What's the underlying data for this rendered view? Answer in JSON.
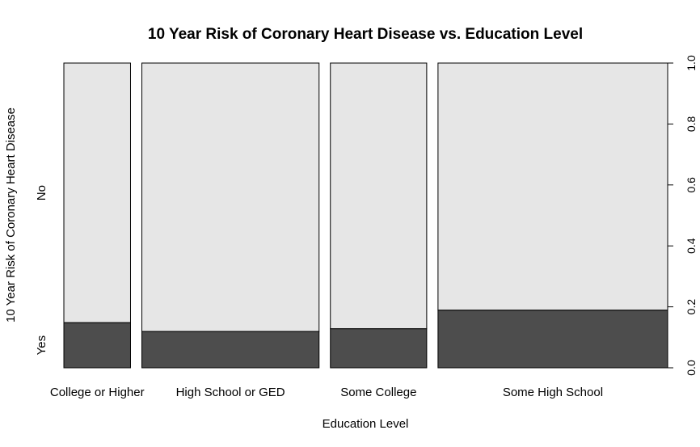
{
  "chart_data": {
    "type": "mosaic",
    "title": "10 Year Risk of Coronary Heart Disease vs. Education Level",
    "xlabel": "Education Level",
    "ylabel": "10 Year Risk of Coronary Heart Disease",
    "categories": [
      "College or Higher",
      "High School or GED",
      "Some College",
      "Some High School"
    ],
    "category_widths": [
      0.117,
      0.311,
      0.169,
      0.403
    ],
    "series": [
      {
        "name": "Yes",
        "values": [
          0.148,
          0.119,
          0.128,
          0.189
        ],
        "color": "#4d4d4d"
      },
      {
        "name": "No",
        "values": [
          0.852,
          0.881,
          0.872,
          0.811
        ],
        "color": "#e6e6e6"
      }
    ],
    "y_ticks": [
      "0.0",
      "0.2",
      "0.4",
      "0.6",
      "0.8",
      "1.0"
    ],
    "ylim": [
      0,
      1
    ],
    "grid": false,
    "legend": "none"
  }
}
